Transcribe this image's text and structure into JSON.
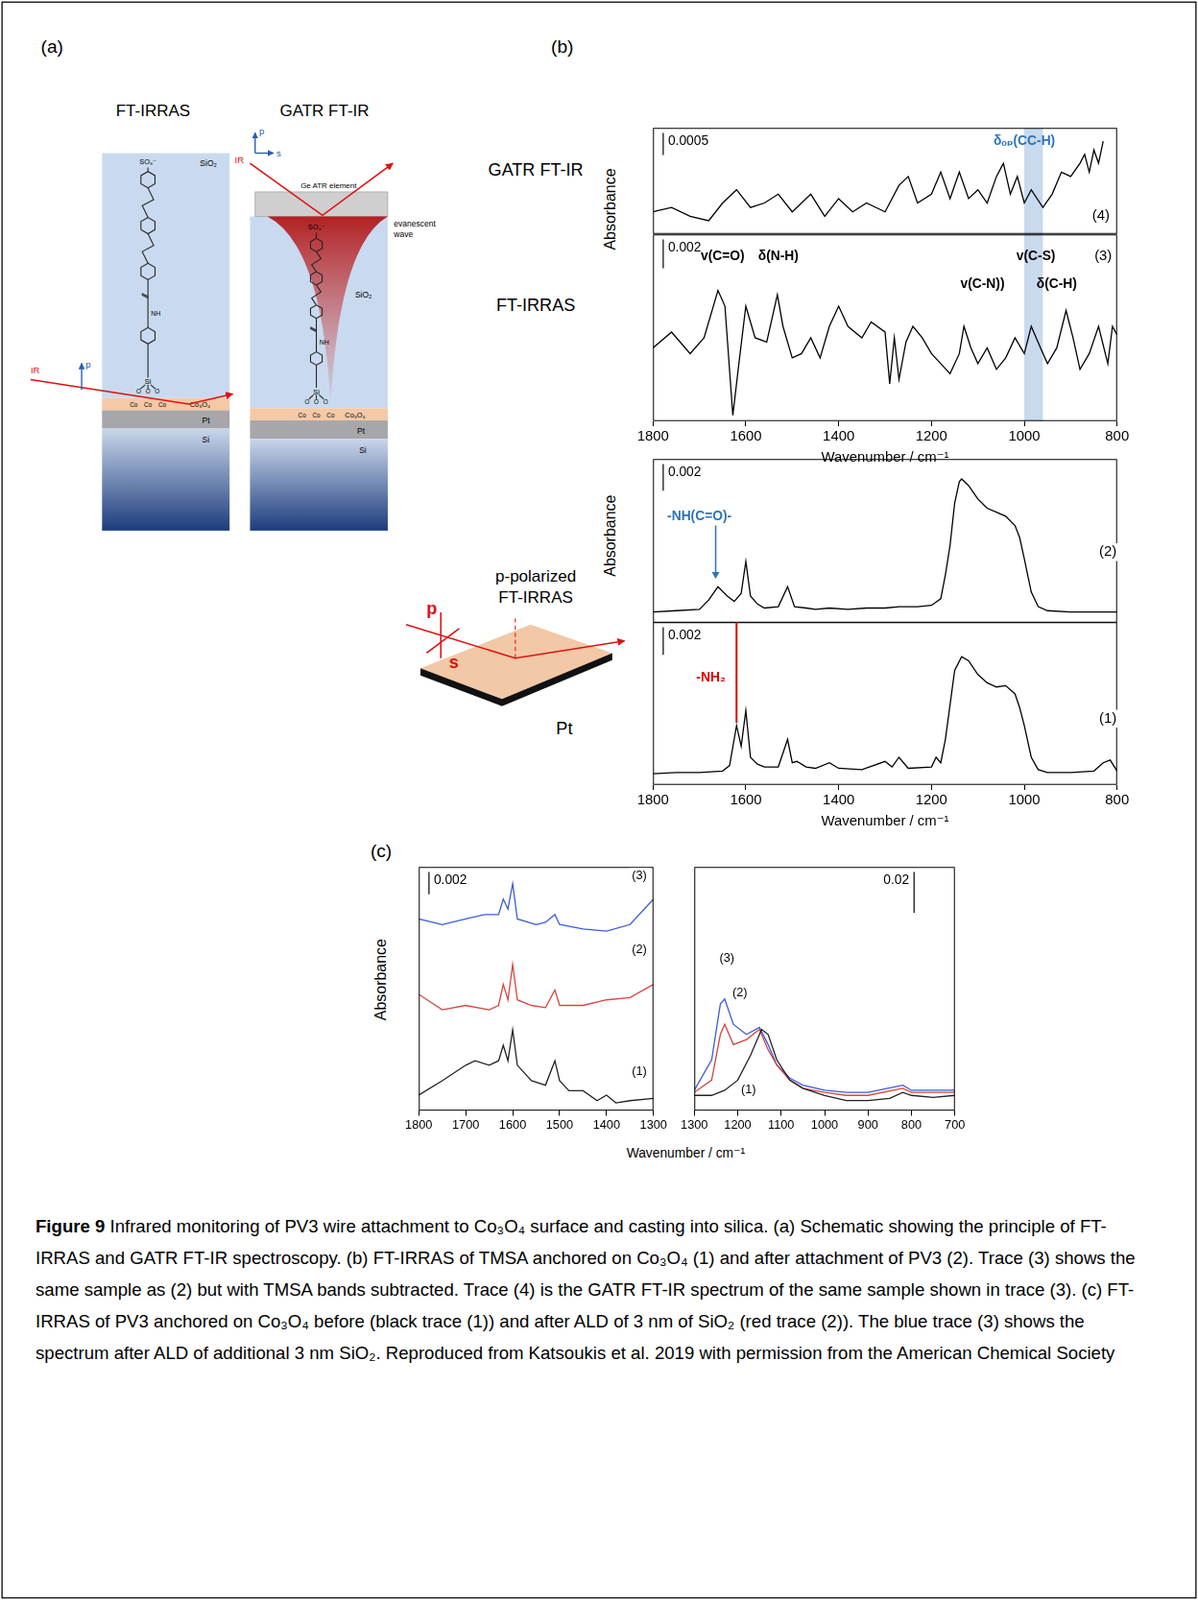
{
  "figure": {
    "panel_labels": [
      "(a)",
      "(b)",
      "(c)"
    ],
    "schematic_a": {
      "titles": [
        "FT-IRRAS",
        "GATR FT-IR"
      ],
      "layers": {
        "silica": "SiO₂",
        "oxide": "Co₃O₄",
        "metal": "Pt",
        "substrate": "Si"
      },
      "beam": "IR",
      "polarization": {
        "p": "p",
        "s": "s"
      },
      "ge_element": "Ge ATR element",
      "evanescent": "evanescent wave",
      "molecule": {
        "head": "SO₃⁻",
        "amide": "NH",
        "silicon": "Si",
        "oxygen": "O",
        "cobalt": "Co"
      }
    },
    "schematic_b": {
      "title": "p-polarized FT-IRRAS",
      "polarization": {
        "p": "p",
        "s": "s"
      },
      "substrate": "Pt"
    },
    "caption": {
      "label": "Figure 9",
      "text": "Infrared monitoring of PV3 wire attachment to Co₃O₄ surface and casting into silica. (a) Schematic showing the principle of FT-IRRAS and GATR FT-IR spectroscopy. (b) FT-IRRAS of TMSA anchored on Co₃O₄ (1) and after attachment of PV3 (2). Trace (3) shows the same sample as (2) but with TMSA bands subtracted. Trace (4) is the GATR FT-IR spectrum of the same sample shown in trace (3). (c) FT-IRRAS of PV3 anchored on Co₃O₄ before (black trace (1)) and after ALD of 3 nm of SiO₂ (red trace (2)). The blue trace (3) shows the spectrum after ALD of additional 3 nm SiO₂. Reproduced from Katsoukis et al. 2019 with permission from the American Chemical Society"
    }
  },
  "chart_data": [
    {
      "type": "line",
      "title": "GATR FT-IR",
      "xlim": [
        1800,
        800
      ],
      "ylim": [
        -0.0012,
        0.0012
      ],
      "tick_labels": false,
      "grid": false,
      "scale_bar": 0.0005,
      "highlight": {
        "x": [
          1000,
          960
        ],
        "color": "#c9d9ee"
      },
      "annotations": [
        {
          "text": "δₒₚ(CC-H)",
          "x": 1000,
          "y": 0.0009,
          "color": "#2e74b5"
        }
      ],
      "series": [
        {
          "name": "(4)",
          "color": "#000000",
          "label_at": [
            835,
            -0.0008
          ],
          "x": [
            1800,
            1760,
            1720,
            1680,
            1650,
            1620,
            1590,
            1560,
            1530,
            1500,
            1460,
            1430,
            1400,
            1370,
            1340,
            1300,
            1270,
            1250,
            1230,
            1200,
            1180,
            1160,
            1140,
            1120,
            1100,
            1080,
            1060,
            1045,
            1030,
            1015,
            1000,
            985,
            960,
            940,
            920,
            900,
            880,
            870,
            860,
            850,
            840,
            830
          ],
          "values": [
            -0.0007,
            -0.0006,
            -0.0008,
            -0.0009,
            -0.0005,
            -0.0002,
            -0.0006,
            -0.0005,
            -0.0003,
            -0.0007,
            -0.0003,
            -0.0008,
            -0.0004,
            -0.0007,
            -0.0005,
            -0.0007,
            -0.0001,
            0.0001,
            -0.0005,
            -0.0003,
            0.0002,
            -0.0004,
            0.0002,
            -0.0004,
            -0.0002,
            -0.0005,
            0.0001,
            0.0004,
            -0.0003,
            0.0001,
            -0.0005,
            -0.0002,
            -0.0006,
            -0.0003,
            0.0002,
            0.0001,
            0.0004,
            0.0006,
            0.0002,
            0.0007,
            0.0004,
            0.0009
          ]
        }
      ]
    },
    {
      "type": "line",
      "title": "FT-IRRAS",
      "x_label": "Wavenumber / cm⁻¹",
      "y_label": "Absorbance",
      "xlim": [
        1800,
        800
      ],
      "xticks": [
        1800,
        1600,
        1400,
        1200,
        1000,
        800
      ],
      "ylim": [
        -0.007,
        0.006
      ],
      "tick_labels": "x",
      "grid": false,
      "scale_bar": 0.002,
      "highlight": {
        "x": [
          1000,
          960
        ],
        "color": "#c9d9ee"
      },
      "annotations": [
        {
          "text": "v(C=O)",
          "x": 1650,
          "y": 0.0045,
          "color": "#000000"
        },
        {
          "text": "δ(N-H)",
          "x": 1530,
          "y": 0.0045,
          "color": "#000000"
        },
        {
          "text": "v(C-S)",
          "x": 975,
          "y": 0.0045,
          "color": "#000000"
        },
        {
          "text": "v(C-N))",
          "x": 1090,
          "y": 0.0025,
          "color": "#000000"
        },
        {
          "text": "δ(C-H)",
          "x": 930,
          "y": 0.0025,
          "color": "#000000"
        }
      ],
      "series": [
        {
          "name": "(3)",
          "color": "#000000",
          "label_at": [
            830,
            0.0045
          ],
          "x": [
            1800,
            1760,
            1720,
            1690,
            1660,
            1645,
            1628,
            1615,
            1600,
            1580,
            1555,
            1532,
            1520,
            1500,
            1480,
            1460,
            1440,
            1420,
            1400,
            1380,
            1350,
            1330,
            1300,
            1290,
            1280,
            1270,
            1255,
            1240,
            1220,
            1200,
            1180,
            1160,
            1140,
            1130,
            1115,
            1100,
            1080,
            1060,
            1040,
            1020,
            1000,
            985,
            965,
            950,
            930,
            910,
            895,
            880,
            860,
            840,
            820,
            810,
            800
          ],
          "values": [
            -0.0019,
            -0.0008,
            -0.0023,
            -0.0012,
            0.0021,
            0.001,
            -0.0066,
            -0.003,
            0.001,
            -0.0012,
            -0.0015,
            0.0018,
            -0.0004,
            -0.0026,
            -0.0023,
            -0.0012,
            -0.0026,
            -0.0004,
            0.001,
            -0.0004,
            -0.0012,
            -0.0001,
            -0.0008,
            -0.0044,
            -0.0012,
            -0.0041,
            -0.0015,
            -0.0004,
            -0.0012,
            -0.0023,
            -0.003,
            -0.0037,
            -0.0023,
            -0.0004,
            -0.0019,
            -0.003,
            -0.0019,
            -0.0034,
            -0.0026,
            -0.0012,
            -0.0023,
            -0.0004,
            -0.0019,
            -0.003,
            -0.0019,
            0.0007,
            -0.0012,
            -0.0034,
            -0.0023,
            -0.0004,
            -0.003,
            -0.0004,
            -0.001
          ]
        }
      ]
    },
    {
      "type": "line",
      "y_label": "Absorbance",
      "xlim": [
        1800,
        800
      ],
      "ylim": [
        -0.0008,
        0.0115
      ],
      "tick_labels": false,
      "grid": false,
      "scale_bar": 0.002,
      "annotations": [
        {
          "text": "-NH(C=O)-",
          "x": 1700,
          "y": 0.0072,
          "color": "#2e74b5",
          "arrow_to": [
            1665,
            0.0025
          ]
        }
      ],
      "series": [
        {
          "name": "(2)",
          "color": "#000000",
          "label_at": [
            820,
            0.0045
          ],
          "x": [
            1800,
            1750,
            1700,
            1680,
            1660,
            1640,
            1625,
            1610,
            1600,
            1590,
            1575,
            1560,
            1530,
            1510,
            1495,
            1470,
            1450,
            1420,
            1380,
            1340,
            1300,
            1270,
            1230,
            1200,
            1180,
            1170,
            1160,
            1150,
            1140,
            1135,
            1120,
            1100,
            1080,
            1060,
            1040,
            1020,
            1010,
            1000,
            985,
            970,
            950,
            900,
            850,
            800
          ],
          "values": [
            0,
            0.0001,
            0.0002,
            0.0009,
            0.0019,
            0.0012,
            0.0008,
            0.0014,
            0.0038,
            0.0012,
            0.0006,
            0.0003,
            0.0004,
            0.0019,
            0.0004,
            0.0003,
            0.0002,
            0.0003,
            0.0002,
            0.0003,
            0.0003,
            0.0004,
            0.0004,
            0.0005,
            0.001,
            0.0028,
            0.005,
            0.0082,
            0.0098,
            0.01,
            0.0095,
            0.0085,
            0.0078,
            0.0075,
            0.0072,
            0.0065,
            0.0056,
            0.004,
            0.0015,
            0.0004,
            0.0001,
            0,
            0,
            0
          ]
        }
      ]
    },
    {
      "type": "line",
      "x_label": "Wavenumber / cm⁻¹",
      "xlim": [
        1800,
        800
      ],
      "xticks": [
        1800,
        1600,
        1400,
        1200,
        1000,
        800
      ],
      "ylim": [
        -0.0008,
        0.011
      ],
      "tick_labels": "x",
      "grid": false,
      "scale_bar": 0.002,
      "annotations": [
        {
          "text": "-NH₂",
          "x": 1675,
          "y": 0.007,
          "color": "#e00000",
          "line_x": 1620,
          "line_y": [
            0.011,
            0.0037
          ]
        }
      ],
      "series": [
        {
          "name": "(1)",
          "color": "#000000",
          "label_at": [
            820,
            0.004
          ],
          "x": [
            1800,
            1750,
            1700,
            1650,
            1635,
            1620,
            1610,
            1600,
            1590,
            1575,
            1560,
            1530,
            1510,
            1500,
            1490,
            1470,
            1450,
            1420,
            1400,
            1350,
            1300,
            1285,
            1270,
            1250,
            1200,
            1190,
            1180,
            1170,
            1160,
            1150,
            1135,
            1120,
            1100,
            1080,
            1060,
            1040,
            1020,
            1010,
            1000,
            985,
            970,
            950,
            900,
            850,
            830,
            815,
            800
          ],
          "values": [
            0,
            0.0001,
            0.0001,
            0.0002,
            0.0006,
            0.0035,
            0.002,
            0.0046,
            0.0012,
            0.0007,
            0.0005,
            0.0005,
            0.0025,
            0.0008,
            0.0009,
            0.0005,
            0.0004,
            0.0008,
            0.0004,
            0.0003,
            0.0009,
            0.0005,
            0.0012,
            0.0004,
            0.0005,
            0.0012,
            0.0008,
            0.0025,
            0.005,
            0.0075,
            0.0085,
            0.0082,
            0.0072,
            0.0066,
            0.0063,
            0.0064,
            0.0058,
            0.0048,
            0.0035,
            0.0012,
            0.0003,
            0.0001,
            0.0001,
            0.0002,
            0.0008,
            0.001,
            0.0002
          ]
        }
      ]
    },
    {
      "type": "line",
      "x_label": "Wavenumber / cm⁻¹",
      "y_label": "Absorbance",
      "xlim": [
        1800,
        1300
      ],
      "xticks": [
        1800,
        1700,
        1600,
        1500,
        1400,
        1300
      ],
      "ylim": [
        0,
        0.022
      ],
      "tick_labels": "x",
      "grid": false,
      "scale_bar": 0.002,
      "series": [
        {
          "name": "(1)",
          "color": "#222222",
          "label_at": [
            1330,
            0.0035
          ],
          "x": [
            1800,
            1750,
            1700,
            1680,
            1650,
            1630,
            1620,
            1610,
            1600,
            1590,
            1560,
            1530,
            1510,
            1500,
            1480,
            1450,
            1420,
            1400,
            1380,
            1350,
            1300
          ],
          "values": [
            0.0014,
            0.0027,
            0.0041,
            0.0045,
            0.0041,
            0.0045,
            0.0059,
            0.0045,
            0.0073,
            0.0041,
            0.0027,
            0.0023,
            0.0045,
            0.0027,
            0.0018,
            0.0018,
            0.0009,
            0.0014,
            0.0007,
            0.0009,
            0.0011
          ]
        },
        {
          "name": "(2)",
          "color": "#d64541",
          "label_at": [
            1330,
            0.0145
          ],
          "x": [
            1800,
            1750,
            1700,
            1650,
            1630,
            1620,
            1610,
            1600,
            1590,
            1560,
            1530,
            1510,
            1500,
            1450,
            1400,
            1350,
            1300
          ],
          "values": [
            0.0105,
            0.0091,
            0.0095,
            0.0091,
            0.0095,
            0.0114,
            0.01,
            0.0132,
            0.01,
            0.0095,
            0.0093,
            0.0109,
            0.0095,
            0.0095,
            0.01,
            0.0102,
            0.0114
          ]
        },
        {
          "name": "(3)",
          "color": "#3b5bdb",
          "label_at": [
            1330,
            0.0212
          ],
          "x": [
            1800,
            1750,
            1700,
            1660,
            1630,
            1620,
            1610,
            1600,
            1590,
            1550,
            1530,
            1510,
            1500,
            1450,
            1400,
            1350,
            1300
          ],
          "values": [
            0.0173,
            0.0168,
            0.0173,
            0.0177,
            0.0177,
            0.0191,
            0.0182,
            0.0205,
            0.0173,
            0.0168,
            0.017,
            0.0177,
            0.0168,
            0.0164,
            0.0162,
            0.0168,
            0.0191
          ]
        }
      ]
    },
    {
      "type": "line",
      "xlim": [
        1300,
        700
      ],
      "xticks": [
        1300,
        1200,
        1100,
        1000,
        900,
        800,
        700
      ],
      "ylim": [
        0,
        0.12
      ],
      "tick_labels": "x",
      "grid": false,
      "scale_bar": 0.02,
      "series": [
        {
          "name": "(1)",
          "color": "#222222",
          "label_at": [
            1175,
            0.01
          ],
          "x": [
            1300,
            1260,
            1230,
            1200,
            1170,
            1145,
            1130,
            1110,
            1080,
            1050,
            1000,
            950,
            900,
            850,
            820,
            800,
            750,
            700
          ],
          "values": [
            0.0075,
            0.0075,
            0.01,
            0.015,
            0.0275,
            0.04,
            0.0375,
            0.025,
            0.015,
            0.011,
            0.0075,
            0.005,
            0.005,
            0.006,
            0.009,
            0.0075,
            0.0065,
            0.0075
          ]
        },
        {
          "name": "(2)",
          "color": "#d64541",
          "label_at": [
            1195,
            0.058
          ],
          "x": [
            1300,
            1260,
            1240,
            1230,
            1210,
            1180,
            1150,
            1130,
            1110,
            1080,
            1050,
            1000,
            950,
            900,
            820,
            800,
            700
          ],
          "values": [
            0.009,
            0.015,
            0.0375,
            0.0425,
            0.0325,
            0.035,
            0.04,
            0.03,
            0.0225,
            0.015,
            0.011,
            0.009,
            0.0075,
            0.0075,
            0.011,
            0.009,
            0.009
          ]
        },
        {
          "name": "(3)",
          "color": "#3b5bdb",
          "label_at": [
            1225,
            0.075
          ],
          "x": [
            1300,
            1260,
            1240,
            1230,
            1210,
            1180,
            1150,
            1130,
            1110,
            1080,
            1050,
            1000,
            950,
            900,
            820,
            800,
            700
          ],
          "values": [
            0.01,
            0.025,
            0.0525,
            0.055,
            0.0425,
            0.0375,
            0.041,
            0.0325,
            0.0225,
            0.016,
            0.0125,
            0.01,
            0.009,
            0.009,
            0.0125,
            0.01,
            0.01
          ]
        }
      ]
    }
  ]
}
